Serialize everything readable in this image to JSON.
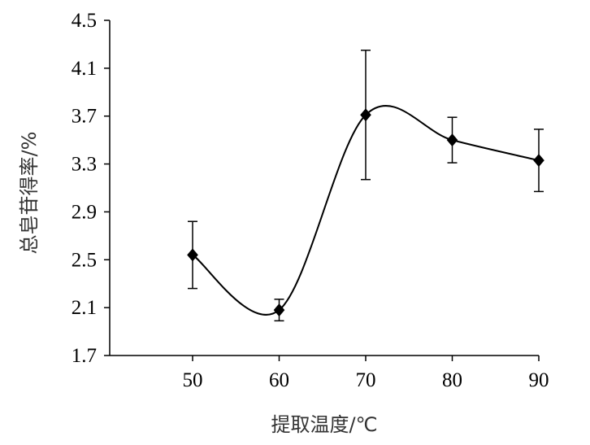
{
  "chart_data": {
    "type": "line",
    "title": "",
    "xlabel": "提取温度/℃",
    "ylabel": "总皂苷得率/%",
    "x": [
      50,
      60,
      70,
      80,
      90
    ],
    "x_tick_labels": [
      "50",
      "60",
      "70",
      "80",
      "90"
    ],
    "y_tick_labels": [
      "1.7",
      "2.1",
      "2.5",
      "2.9",
      "3.3",
      "3.7",
      "4.1",
      "4.5"
    ],
    "ylim": [
      1.7,
      4.5
    ],
    "grid": false,
    "smooth": true,
    "marker": "diamond",
    "series": [
      {
        "values": [
          2.54,
          2.08,
          3.71,
          3.5,
          3.33
        ],
        "error": [
          0.28,
          0.09,
          0.54,
          0.19,
          0.26
        ]
      }
    ],
    "colors": {
      "line": "#000000",
      "marker": "#000000",
      "axis": "#000000"
    }
  }
}
